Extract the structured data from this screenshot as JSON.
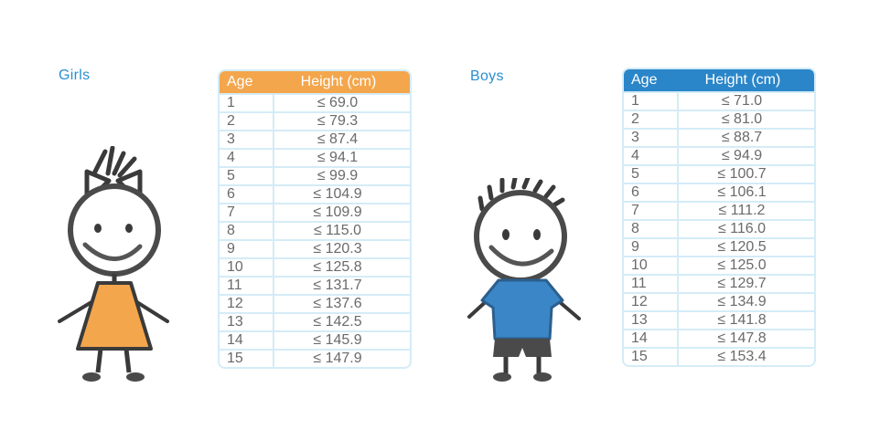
{
  "girls": {
    "title": "Girls",
    "header": {
      "age": "Age",
      "height": "Height (cm)"
    },
    "rows": [
      {
        "age": "1",
        "height": "≤ 69.0"
      },
      {
        "age": "2",
        "height": "≤ 79.3"
      },
      {
        "age": "3",
        "height": "≤ 87.4"
      },
      {
        "age": "4",
        "height": "≤ 94.1"
      },
      {
        "age": "5",
        "height": "≤ 99.9"
      },
      {
        "age": "6",
        "height": "≤ 104.9"
      },
      {
        "age": "7",
        "height": "≤ 109.9"
      },
      {
        "age": "8",
        "height": "≤ 115.0"
      },
      {
        "age": "9",
        "height": "≤ 120.3"
      },
      {
        "age": "10",
        "height": "≤ 125.8"
      },
      {
        "age": "11",
        "height": "≤ 131.7"
      },
      {
        "age": "12",
        "height": "≤ 137.6"
      },
      {
        "age": "13",
        "height": "≤ 142.5"
      },
      {
        "age": "14",
        "height": "≤ 145.9"
      },
      {
        "age": "15",
        "height": "≤ 147.9"
      }
    ]
  },
  "boys": {
    "title": "Boys",
    "header": {
      "age": "Age",
      "height": "Height (cm)"
    },
    "rows": [
      {
        "age": "1",
        "height": "≤ 71.0"
      },
      {
        "age": "2",
        "height": "≤ 81.0"
      },
      {
        "age": "3",
        "height": "≤ 88.7"
      },
      {
        "age": "4",
        "height": "≤ 94.9"
      },
      {
        "age": "5",
        "height": "≤ 100.7"
      },
      {
        "age": "6",
        "height": "≤ 106.1"
      },
      {
        "age": "7",
        "height": "≤ 111.2"
      },
      {
        "age": "8",
        "height": "≤ 116.0"
      },
      {
        "age": "9",
        "height": "≤ 120.5"
      },
      {
        "age": "10",
        "height": "≤ 125.0"
      },
      {
        "age": "11",
        "height": "≤ 129.7"
      },
      {
        "age": "12",
        "height": "≤ 134.9"
      },
      {
        "age": "13",
        "height": "≤ 141.8"
      },
      {
        "age": "14",
        "height": "≤ 147.8"
      },
      {
        "age": "15",
        "height": "≤ 153.4"
      }
    ]
  },
  "colors": {
    "title": "#2a8fd0",
    "girls_header": "#f4a64c",
    "boys_header": "#2a86c9",
    "grid": "#d4ecf7",
    "text": "#6a6a6a",
    "girl_dress": "#f4a64c",
    "boy_shirt": "#3b86c6"
  },
  "icons": {
    "girl": "girl-illustration",
    "boy": "boy-illustration"
  }
}
